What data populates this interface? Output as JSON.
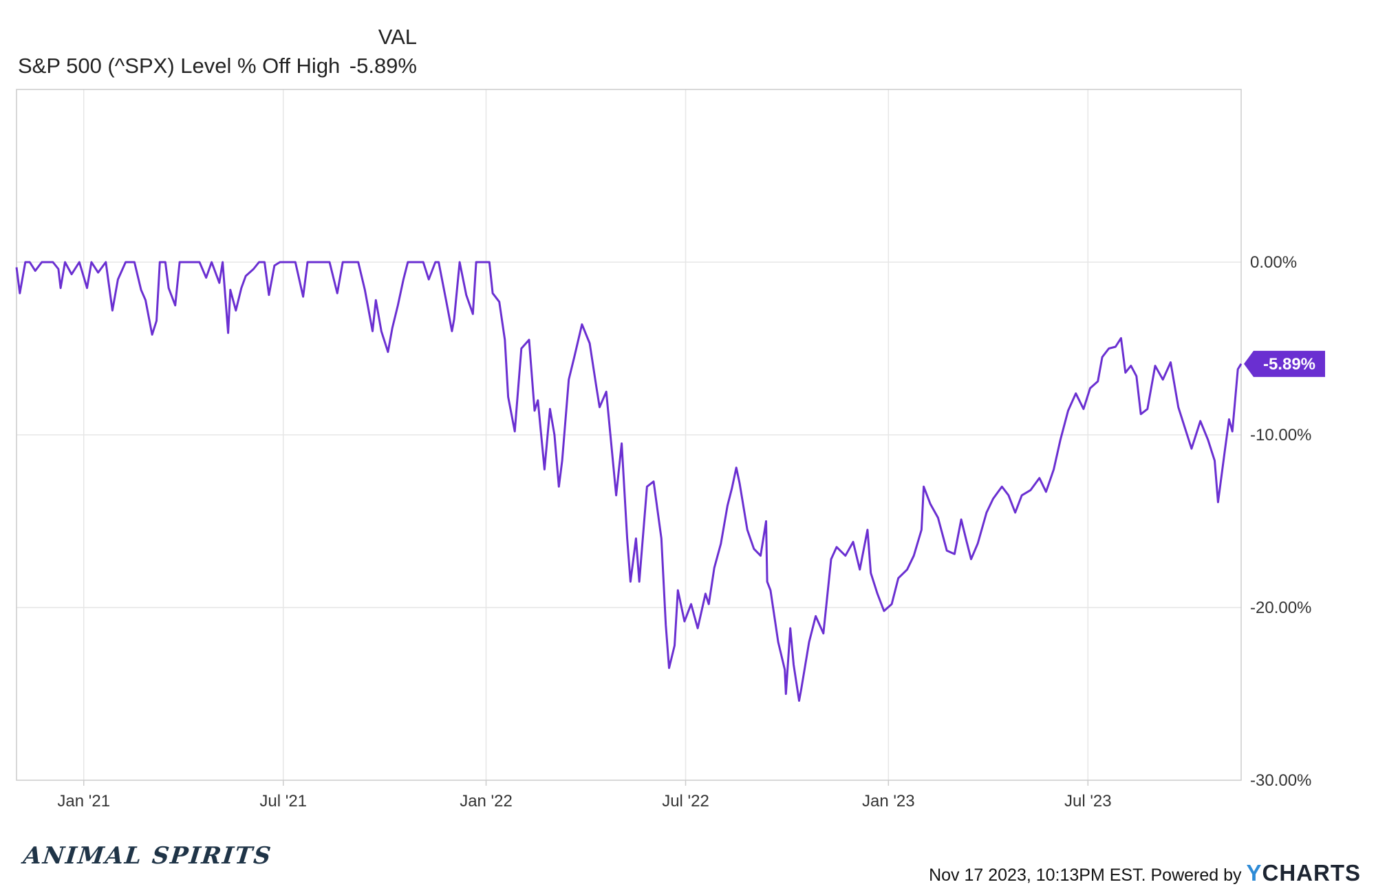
{
  "legend": {
    "header_label": "VAL",
    "series_name": "S&P 500 (^SPX) Level % Off High",
    "series_value": "-5.89%"
  },
  "colors": {
    "line": "#6a2fd1",
    "badge": "#6a2fd1",
    "grid": "#e6e6e6",
    "axis": "#cccccc"
  },
  "chart_data": {
    "type": "line",
    "title": "",
    "xlabel": "",
    "ylabel": "",
    "grid": true,
    "legend_position": "top-left",
    "x_range": [
      "2020-11-01",
      "2023-11-17"
    ],
    "ylim": [
      -30,
      10
    ],
    "y_ticks": [
      0,
      -10,
      -20,
      -30
    ],
    "y_tick_labels": [
      "0.00%",
      "-10.00%",
      "-20.00%",
      "-30.00%"
    ],
    "x_ticks": [
      "2021-01-01",
      "2021-07-01",
      "2022-01-01",
      "2022-07-01",
      "2023-01-01",
      "2023-07-01"
    ],
    "x_tick_labels": [
      "Jan '21",
      "Jul '21",
      "Jan '22",
      "Jul '22",
      "Jan '23",
      "Jul '23"
    ],
    "last_value_label": "-5.89%",
    "series": [
      {
        "name": "S&P 500 (^SPX) Level % Off High",
        "points": [
          [
            "2020-11-01",
            -0.3
          ],
          [
            "2020-11-04",
            -1.8
          ],
          [
            "2020-11-09",
            0
          ],
          [
            "2020-11-13",
            0
          ],
          [
            "2020-11-18",
            -0.5
          ],
          [
            "2020-11-24",
            0
          ],
          [
            "2020-12-01",
            0
          ],
          [
            "2020-12-04",
            0
          ],
          [
            "2020-12-09",
            -0.4
          ],
          [
            "2020-12-11",
            -1.5
          ],
          [
            "2020-12-15",
            0
          ],
          [
            "2020-12-21",
            -0.7
          ],
          [
            "2020-12-28",
            0
          ],
          [
            "2021-01-04",
            -1.5
          ],
          [
            "2021-01-08",
            0
          ],
          [
            "2021-01-14",
            -0.6
          ],
          [
            "2021-01-21",
            0
          ],
          [
            "2021-01-27",
            -2.8
          ],
          [
            "2021-02-01",
            -1.0
          ],
          [
            "2021-02-08",
            0
          ],
          [
            "2021-02-16",
            0
          ],
          [
            "2021-02-22",
            -1.6
          ],
          [
            "2021-02-26",
            -2.2
          ],
          [
            "2021-03-04",
            -4.2
          ],
          [
            "2021-03-08",
            -3.4
          ],
          [
            "2021-03-11",
            0
          ],
          [
            "2021-03-16",
            0
          ],
          [
            "2021-03-19",
            -1.5
          ],
          [
            "2021-03-25",
            -2.5
          ],
          [
            "2021-03-29",
            0
          ],
          [
            "2021-04-06",
            0
          ],
          [
            "2021-04-12",
            0
          ],
          [
            "2021-04-16",
            0
          ],
          [
            "2021-04-22",
            -0.9
          ],
          [
            "2021-04-27",
            0
          ],
          [
            "2021-05-04",
            -1.2
          ],
          [
            "2021-05-07",
            0
          ],
          [
            "2021-05-12",
            -4.1
          ],
          [
            "2021-05-14",
            -1.6
          ],
          [
            "2021-05-19",
            -2.8
          ],
          [
            "2021-05-24",
            -1.5
          ],
          [
            "2021-05-28",
            -0.8
          ],
          [
            "2021-06-04",
            -0.4
          ],
          [
            "2021-06-09",
            0
          ],
          [
            "2021-06-14",
            0
          ],
          [
            "2021-06-18",
            -1.9
          ],
          [
            "2021-06-23",
            -0.2
          ],
          [
            "2021-06-28",
            0
          ],
          [
            "2021-07-06",
            0
          ],
          [
            "2021-07-12",
            0
          ],
          [
            "2021-07-19",
            -2.0
          ],
          [
            "2021-07-23",
            0
          ],
          [
            "2021-07-29",
            0
          ],
          [
            "2021-08-05",
            0
          ],
          [
            "2021-08-12",
            0
          ],
          [
            "2021-08-19",
            -1.8
          ],
          [
            "2021-08-24",
            0
          ],
          [
            "2021-08-31",
            0
          ],
          [
            "2021-09-07",
            0
          ],
          [
            "2021-09-13",
            -1.6
          ],
          [
            "2021-09-20",
            -4.0
          ],
          [
            "2021-09-23",
            -2.2
          ],
          [
            "2021-09-28",
            -4.0
          ],
          [
            "2021-10-04",
            -5.2
          ],
          [
            "2021-10-08",
            -3.8
          ],
          [
            "2021-10-13",
            -2.5
          ],
          [
            "2021-10-18",
            -1.0
          ],
          [
            "2021-10-22",
            0
          ],
          [
            "2021-10-29",
            0
          ],
          [
            "2021-11-05",
            0
          ],
          [
            "2021-11-10",
            -1.0
          ],
          [
            "2021-11-16",
            0
          ],
          [
            "2021-11-19",
            0
          ],
          [
            "2021-11-26",
            -2.3
          ],
          [
            "2021-12-01",
            -4.0
          ],
          [
            "2021-12-03",
            -3.3
          ],
          [
            "2021-12-08",
            0
          ],
          [
            "2021-12-14",
            -1.9
          ],
          [
            "2021-12-20",
            -3.0
          ],
          [
            "2021-12-23",
            0
          ],
          [
            "2021-12-29",
            0
          ],
          [
            "2022-01-04",
            0
          ],
          [
            "2022-01-07",
            -1.8
          ],
          [
            "2022-01-13",
            -2.3
          ],
          [
            "2022-01-18",
            -4.5
          ],
          [
            "2022-01-21",
            -7.8
          ],
          [
            "2022-01-27",
            -9.8
          ],
          [
            "2022-02-02",
            -5.0
          ],
          [
            "2022-02-09",
            -4.5
          ],
          [
            "2022-02-14",
            -8.6
          ],
          [
            "2022-02-17",
            -8.0
          ],
          [
            "2022-02-23",
            -12.0
          ],
          [
            "2022-02-28",
            -8.5
          ],
          [
            "2022-03-04",
            -10.0
          ],
          [
            "2022-03-08",
            -13.0
          ],
          [
            "2022-03-11",
            -11.5
          ],
          [
            "2022-03-17",
            -6.8
          ],
          [
            "2022-03-22",
            -5.5
          ],
          [
            "2022-03-29",
            -3.6
          ],
          [
            "2022-04-05",
            -4.7
          ],
          [
            "2022-04-11",
            -7.2
          ],
          [
            "2022-04-14",
            -8.4
          ],
          [
            "2022-04-20",
            -7.5
          ],
          [
            "2022-04-26",
            -11.5
          ],
          [
            "2022-04-29",
            -13.5
          ],
          [
            "2022-05-04",
            -10.5
          ],
          [
            "2022-05-09",
            -16.0
          ],
          [
            "2022-05-12",
            -18.5
          ],
          [
            "2022-05-17",
            -16.0
          ],
          [
            "2022-05-20",
            -18.5
          ],
          [
            "2022-05-27",
            -13.0
          ],
          [
            "2022-06-02",
            -12.7
          ],
          [
            "2022-06-09",
            -16.0
          ],
          [
            "2022-06-13",
            -21.0
          ],
          [
            "2022-06-16",
            -23.5
          ],
          [
            "2022-06-21",
            -22.2
          ],
          [
            "2022-06-24",
            -19.0
          ],
          [
            "2022-06-30",
            -20.8
          ],
          [
            "2022-07-06",
            -19.8
          ],
          [
            "2022-07-12",
            -21.2
          ],
          [
            "2022-07-19",
            -19.2
          ],
          [
            "2022-07-22",
            -19.8
          ],
          [
            "2022-07-27",
            -17.7
          ],
          [
            "2022-08-02",
            -16.3
          ],
          [
            "2022-08-08",
            -14.1
          ],
          [
            "2022-08-12",
            -13.1
          ],
          [
            "2022-08-16",
            -11.9
          ],
          [
            "2022-08-19",
            -12.8
          ],
          [
            "2022-08-26",
            -15.5
          ],
          [
            "2022-09-01",
            -16.6
          ],
          [
            "2022-09-07",
            -17.0
          ],
          [
            "2022-09-12",
            -15.0
          ],
          [
            "2022-09-13",
            -18.5
          ],
          [
            "2022-09-16",
            -19.0
          ],
          [
            "2022-09-23",
            -22.0
          ],
          [
            "2022-09-29",
            -23.6
          ],
          [
            "2022-09-30",
            -25.0
          ],
          [
            "2022-10-04",
            -21.2
          ],
          [
            "2022-10-07",
            -23.3
          ],
          [
            "2022-10-12",
            -25.4
          ],
          [
            "2022-10-14",
            -24.7
          ],
          [
            "2022-10-21",
            -22.0
          ],
          [
            "2022-10-27",
            -20.5
          ],
          [
            "2022-11-03",
            -21.5
          ],
          [
            "2022-11-10",
            -17.2
          ],
          [
            "2022-11-15",
            -16.5
          ],
          [
            "2022-11-23",
            -17.0
          ],
          [
            "2022-11-30",
            -16.2
          ],
          [
            "2022-12-06",
            -17.8
          ],
          [
            "2022-12-13",
            -15.5
          ],
          [
            "2022-12-16",
            -18.0
          ],
          [
            "2022-12-22",
            -19.2
          ],
          [
            "2022-12-28",
            -20.2
          ],
          [
            "2023-01-04",
            -19.8
          ],
          [
            "2023-01-10",
            -18.3
          ],
          [
            "2023-01-18",
            -17.8
          ],
          [
            "2023-01-24",
            -17.0
          ],
          [
            "2023-01-31",
            -15.5
          ],
          [
            "2023-02-02",
            -13.0
          ],
          [
            "2023-02-08",
            -14.0
          ],
          [
            "2023-02-15",
            -14.8
          ],
          [
            "2023-02-23",
            -16.7
          ],
          [
            "2023-03-02",
            -16.9
          ],
          [
            "2023-03-08",
            -14.9
          ],
          [
            "2023-03-13",
            -16.2
          ],
          [
            "2023-03-17",
            -17.2
          ],
          [
            "2023-03-23",
            -16.3
          ],
          [
            "2023-03-31",
            -14.5
          ],
          [
            "2023-04-06",
            -13.7
          ],
          [
            "2023-04-14",
            -13.0
          ],
          [
            "2023-04-20",
            -13.5
          ],
          [
            "2023-04-26",
            -14.5
          ],
          [
            "2023-05-02",
            -13.5
          ],
          [
            "2023-05-10",
            -13.2
          ],
          [
            "2023-05-18",
            -12.5
          ],
          [
            "2023-05-24",
            -13.3
          ],
          [
            "2023-05-31",
            -12.0
          ],
          [
            "2023-06-06",
            -10.3
          ],
          [
            "2023-06-13",
            -8.6
          ],
          [
            "2023-06-20",
            -7.6
          ],
          [
            "2023-06-27",
            -8.5
          ],
          [
            "2023-07-03",
            -7.3
          ],
          [
            "2023-07-10",
            -6.9
          ],
          [
            "2023-07-14",
            -5.5
          ],
          [
            "2023-07-20",
            -5.0
          ],
          [
            "2023-07-26",
            -4.9
          ],
          [
            "2023-07-31",
            -4.4
          ],
          [
            "2023-08-04",
            -6.4
          ],
          [
            "2023-08-09",
            -6.0
          ],
          [
            "2023-08-14",
            -6.6
          ],
          [
            "2023-08-18",
            -8.8
          ],
          [
            "2023-08-24",
            -8.5
          ],
          [
            "2023-08-31",
            -6.0
          ],
          [
            "2023-09-07",
            -6.8
          ],
          [
            "2023-09-14",
            -5.8
          ],
          [
            "2023-09-21",
            -8.4
          ],
          [
            "2023-09-27",
            -9.6
          ],
          [
            "2023-10-03",
            -10.8
          ],
          [
            "2023-10-11",
            -9.2
          ],
          [
            "2023-10-18",
            -10.3
          ],
          [
            "2023-10-24",
            -11.5
          ],
          [
            "2023-10-27",
            -13.9
          ],
          [
            "2023-11-02",
            -11.0
          ],
          [
            "2023-11-06",
            -9.1
          ],
          [
            "2023-11-09",
            -9.8
          ],
          [
            "2023-11-14",
            -6.2
          ],
          [
            "2023-11-17",
            -5.89
          ]
        ]
      }
    ]
  },
  "branding": {
    "logo_text": "ANIMAL SPIRITS"
  },
  "footer": {
    "timestamp_text": "Nov 17 2023, 10:13PM EST.",
    "powered_by": "Powered by",
    "logo_y": "Y",
    "logo_rest": "CHARTS"
  }
}
